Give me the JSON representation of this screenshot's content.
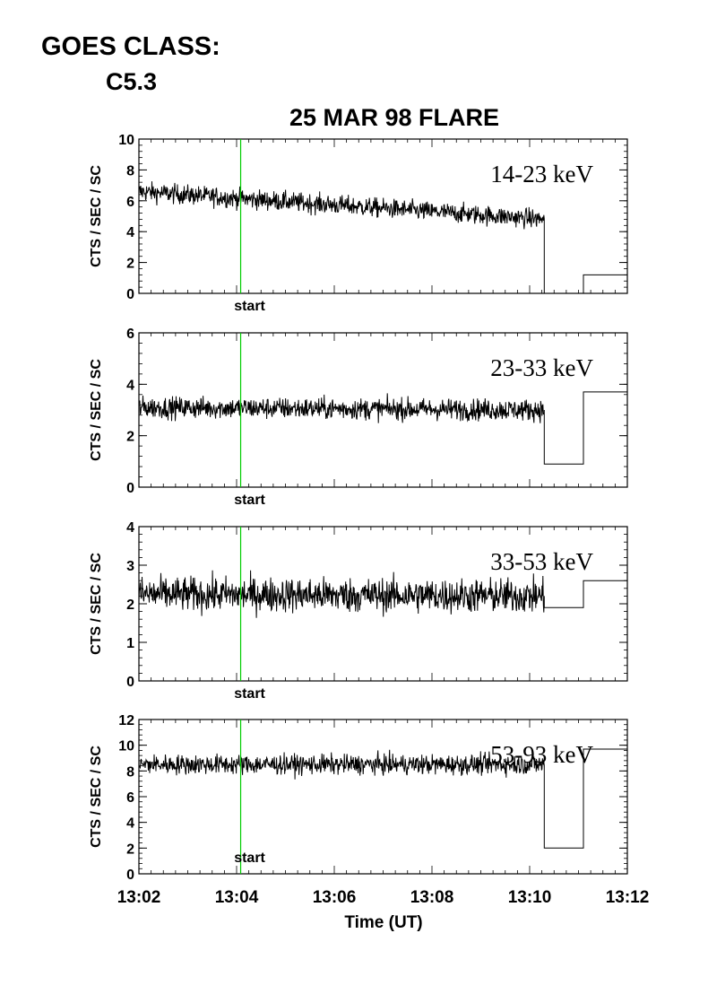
{
  "header": {
    "goes_label": "GOES CLASS:",
    "goes_value": "C5.3"
  },
  "chart_data": {
    "type": "line",
    "title": "25 MAR 98 FLARE",
    "xlabel": "Time (UT)",
    "ylabel": "CTS / SEC / SC",
    "x_ticks": [
      "13:02",
      "13:04",
      "13:06",
      "13:08",
      "13:10",
      "13:12"
    ],
    "xlim": [
      "13:02",
      "13:12"
    ],
    "marker": {
      "label": "start",
      "time": "13:04:05",
      "color": "#00cc00"
    },
    "grid": false,
    "panels": [
      {
        "name": "14-23 keV",
        "ylim": [
          0,
          10
        ],
        "y_ticks": [
          "0",
          "2",
          "4",
          "6",
          "8",
          "10"
        ],
        "noisy_segment": {
          "start": "13:02",
          "end": "13:10:18",
          "level_start": 6.6,
          "level_end": 4.8,
          "noise": 0.45
        },
        "binned": [
          {
            "start": "13:10:18",
            "end": "13:11:06",
            "value": 0.0
          },
          {
            "start": "13:11:06",
            "end": "13:11:54",
            "value": 1.2
          }
        ]
      },
      {
        "name": "23-33 keV",
        "ylim": [
          0,
          6
        ],
        "y_ticks": [
          "0",
          "2",
          "4",
          "6"
        ],
        "noisy_segment": {
          "start": "13:02",
          "end": "13:10:18",
          "level_start": 3.1,
          "level_end": 3.0,
          "noise": 0.3
        },
        "binned": [
          {
            "start": "13:10:18",
            "end": "13:11:06",
            "value": 0.9
          },
          {
            "start": "13:11:06",
            "end": "13:11:54",
            "value": 3.7
          }
        ]
      },
      {
        "name": "33-53 keV",
        "ylim": [
          0,
          4
        ],
        "y_ticks": [
          "0",
          "1",
          "2",
          "3",
          "4"
        ],
        "noisy_segment": {
          "start": "13:02",
          "end": "13:10:18",
          "level_start": 2.25,
          "level_end": 2.2,
          "noise": 0.32
        },
        "binned": [
          {
            "start": "13:10:18",
            "end": "13:11:06",
            "value": 1.9
          },
          {
            "start": "13:11:06",
            "end": "13:11:54",
            "value": 2.6
          }
        ]
      },
      {
        "name": "53-93 keV",
        "ylim": [
          0,
          12
        ],
        "y_ticks": [
          "0",
          "2",
          "4",
          "6",
          "8",
          "10",
          "12"
        ],
        "noisy_segment": {
          "start": "13:02",
          "end": "13:10:18",
          "level_start": 8.5,
          "level_end": 8.5,
          "noise": 0.55
        },
        "binned": [
          {
            "start": "13:10:18",
            "end": "13:11:06",
            "value": 2.0
          },
          {
            "start": "13:11:06",
            "end": "13:11:54",
            "value": 9.7
          }
        ]
      }
    ]
  }
}
